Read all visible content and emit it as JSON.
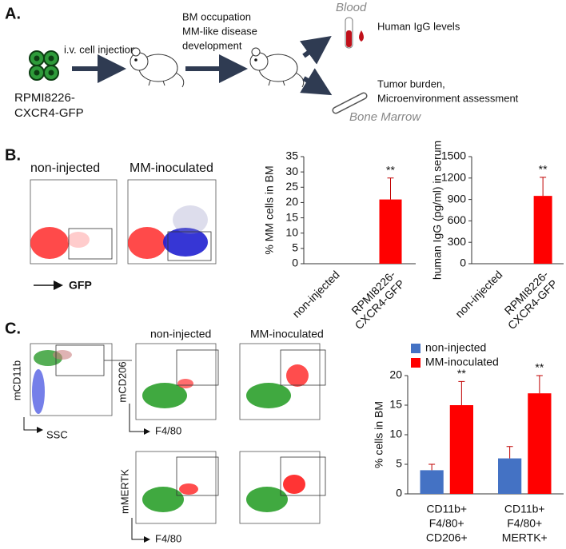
{
  "panel_a": {
    "label": "A.",
    "cell_line": [
      "RPMI8226-",
      "CXCR4-GFP"
    ],
    "injection": "i.v. cell injection",
    "development": [
      "BM occupation",
      "MM-like disease",
      "development"
    ],
    "blood": "Blood",
    "blood_readout": "Human IgG levels",
    "marrow_readout": [
      "Tumor burden,",
      "Microenvironment assessment"
    ],
    "marrow": "Bone Marrow"
  },
  "panel_b": {
    "label": "B.",
    "plot_titles": [
      "non-injected",
      "MM-inoculated"
    ],
    "x_axis": "GFP"
  },
  "panel_c": {
    "label": "C.",
    "gate_y": "mCD11b",
    "gate_x": "SSC",
    "plot_titles": [
      "non-injected",
      "MM-inoculated"
    ],
    "row_y": [
      "mCD206",
      "mMERTK"
    ],
    "row_x": [
      "F4/80",
      "F4/80"
    ]
  },
  "chart_data": [
    {
      "type": "bar",
      "ylabel": "% MM cells in BM",
      "categories": [
        [
          "non-injected"
        ],
        [
          "RPMI8226-",
          "CXCR4-GFP"
        ]
      ],
      "values": [
        0,
        21
      ],
      "errors": [
        null,
        7
      ],
      "annotations": [
        null,
        "**"
      ],
      "color": "#ff0000",
      "ylim": [
        0,
        35
      ],
      "yticks": [
        0,
        5,
        10,
        15,
        20,
        25,
        30,
        35
      ],
      "xtick_rotation": 45,
      "grid": false
    },
    {
      "type": "bar",
      "ylabel": "human IgG (pg/ml) in serum",
      "categories": [
        [
          "non-injected"
        ],
        [
          "RPMI8226-",
          "CXCR4-GFP"
        ]
      ],
      "values": [
        0,
        950
      ],
      "errors": [
        null,
        260
      ],
      "annotations": [
        null,
        "**"
      ],
      "color": "#ff0000",
      "ylim": [
        0,
        1500
      ],
      "yticks": [
        0,
        300,
        600,
        900,
        1200,
        1500
      ],
      "xtick_rotation": 45,
      "grid": false
    },
    {
      "type": "bar",
      "ylabel": "% cells in BM",
      "categories": [
        [
          "CD11b+",
          "F4/80+",
          "CD206+"
        ],
        [
          "CD11b+",
          "F4/80+",
          "MERTK+"
        ]
      ],
      "series": [
        {
          "name": "non-injected",
          "color": "#4472c4",
          "values": [
            4,
            6
          ],
          "errors": [
            1,
            2
          ]
        },
        {
          "name": "MM-inoculated",
          "color": "#ff0000",
          "values": [
            15,
            17
          ],
          "errors": [
            4,
            3
          ],
          "annotations": [
            "**",
            "**"
          ]
        }
      ],
      "ylim": [
        0,
        20
      ],
      "yticks": [
        0,
        5,
        10,
        15,
        20
      ],
      "xtick_rotation": 0,
      "legend": "top",
      "grid": false
    }
  ]
}
